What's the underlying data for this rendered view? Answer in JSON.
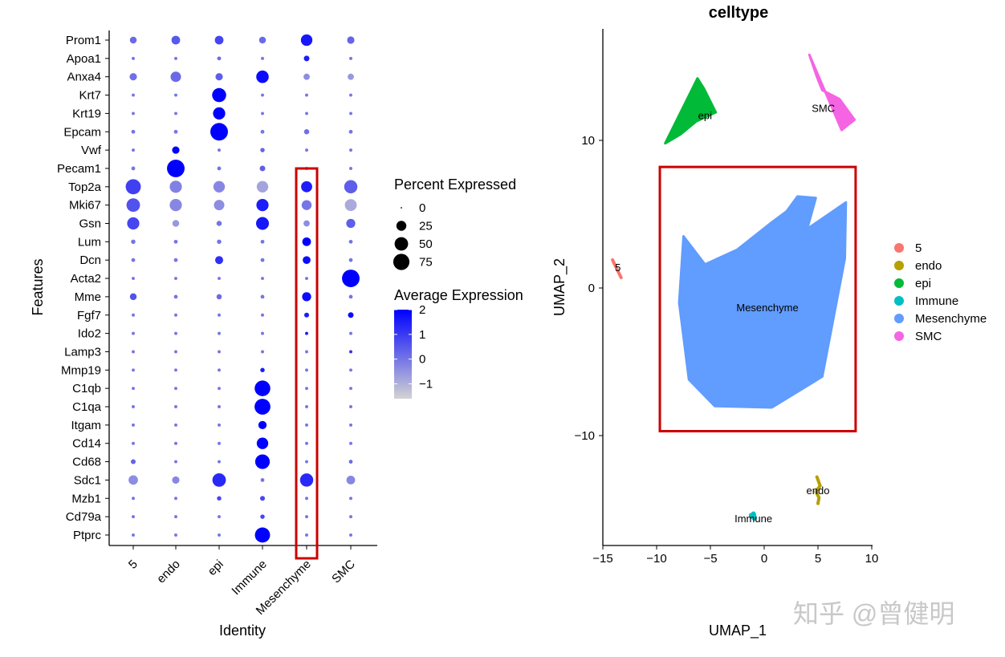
{
  "watermark": "知乎 @曾健明",
  "chart_data": [
    {
      "type": "dotplot",
      "xlabel": "Identity",
      "ylabel": "Features",
      "identities": [
        "5",
        "endo",
        "epi",
        "Immune",
        "Mesenchyme",
        "SMC"
      ],
      "features": [
        "Prom1",
        "Apoa1",
        "Anxa4",
        "Krt7",
        "Krt19",
        "Epcam",
        "Vwf",
        "Pecam1",
        "Top2a",
        "Mki67",
        "Gsn",
        "Lum",
        "Dcn",
        "Acta2",
        "Mme",
        "Fgf7",
        "Ido2",
        "Lamp3",
        "Mmp19",
        "C1qb",
        "C1qa",
        "Itgam",
        "Cd14",
        "Cd68",
        "Sdc1",
        "Mzb1",
        "Cd79a",
        "Ptprc"
      ],
      "percent_expressed": [
        [
          10,
          18,
          18,
          10,
          35,
          12
        ],
        [
          1,
          1,
          2,
          1,
          6,
          1
        ],
        [
          12,
          28,
          12,
          42,
          8,
          8
        ],
        [
          1,
          1,
          55,
          1,
          1,
          1
        ],
        [
          1,
          1,
          40,
          1,
          1,
          1
        ],
        [
          2,
          2,
          90,
          2,
          5,
          2
        ],
        [
          1,
          12,
          1,
          3,
          1,
          1
        ],
        [
          2,
          90,
          2,
          6,
          1,
          1
        ],
        [
          65,
          40,
          35,
          35,
          32,
          48
        ],
        [
          50,
          40,
          28,
          40,
          25,
          38
        ],
        [
          40,
          10,
          5,
          45,
          8,
          20
        ],
        [
          3,
          2,
          3,
          2,
          18,
          2
        ],
        [
          2,
          2,
          15,
          2,
          14,
          2
        ],
        [
          1,
          1,
          1,
          1,
          1,
          90
        ],
        [
          10,
          2,
          5,
          2,
          20,
          2
        ],
        [
          1,
          1,
          1,
          1,
          4,
          6
        ],
        [
          1,
          1,
          1,
          1,
          1,
          1
        ],
        [
          1,
          1,
          1,
          1,
          1,
          1
        ],
        [
          1,
          1,
          1,
          3,
          1,
          1
        ],
        [
          1,
          1,
          1,
          70,
          1,
          1
        ],
        [
          1,
          1,
          1,
          72,
          1,
          1
        ],
        [
          1,
          1,
          1,
          16,
          1,
          1
        ],
        [
          1,
          1,
          1,
          35,
          1,
          1
        ],
        [
          4,
          1,
          1,
          60,
          1,
          2
        ],
        [
          22,
          12,
          50,
          2,
          48,
          18
        ],
        [
          1,
          1,
          3,
          4,
          1,
          1
        ],
        [
          1,
          1,
          1,
          3,
          1,
          1
        ],
        [
          1,
          1,
          1,
          65,
          1,
          1
        ]
      ],
      "average_expression": [
        [
          0.2,
          0.5,
          0.8,
          0.2,
          1.6,
          0.3
        ],
        [
          0,
          0,
          0.2,
          0,
          1.5,
          0
        ],
        [
          0.1,
          0.2,
          0.4,
          1.8,
          -0.4,
          -0.6
        ],
        [
          0,
          0,
          2,
          0,
          0,
          0
        ],
        [
          0,
          0,
          2,
          0,
          0,
          0
        ],
        [
          0,
          0,
          2,
          0,
          0.1,
          0
        ],
        [
          0,
          2,
          0,
          0.3,
          0,
          0
        ],
        [
          0,
          2,
          0,
          0.4,
          0,
          0
        ],
        [
          0.9,
          -0.2,
          -0.3,
          -0.8,
          1.5,
          0.4
        ],
        [
          0.6,
          -0.3,
          -0.4,
          1.5,
          0,
          -0.9
        ],
        [
          0.8,
          -0.6,
          0,
          1.6,
          -0.4,
          0.4
        ],
        [
          0,
          0,
          0,
          0,
          2,
          0
        ],
        [
          0,
          0,
          1.2,
          0,
          1.8,
          0
        ],
        [
          0,
          0,
          0,
          0,
          0,
          2
        ],
        [
          0.6,
          0,
          0.2,
          0,
          1.8,
          0
        ],
        [
          0,
          0,
          0,
          0,
          1.5,
          1.8
        ],
        [
          0,
          0,
          0,
          0,
          1.5,
          0
        ],
        [
          0,
          0,
          0,
          0,
          0,
          1.2
        ],
        [
          0,
          0,
          0,
          1.5,
          0,
          0
        ],
        [
          0,
          0,
          0,
          2,
          0,
          0
        ],
        [
          0,
          0,
          0,
          2,
          0,
          0
        ],
        [
          0,
          0,
          0,
          2,
          0,
          0
        ],
        [
          0,
          0,
          0,
          2,
          0,
          0
        ],
        [
          0.3,
          0,
          0,
          2,
          0,
          0.2
        ],
        [
          -0.4,
          -0.3,
          1.3,
          0,
          1.3,
          -0.3
        ],
        [
          0,
          0,
          0.8,
          0.8,
          0,
          0
        ],
        [
          0,
          0,
          0,
          0.8,
          0,
          0
        ],
        [
          0,
          0,
          0,
          2,
          0,
          0
        ]
      ],
      "size_legend": {
        "title": "Percent Expressed",
        "values": [
          0,
          25,
          50,
          75
        ]
      },
      "color_legend": {
        "title": "Average Expression",
        "ticks": [
          2,
          1,
          0,
          -1
        ],
        "range": [
          -1.6,
          2
        ],
        "low_color": "#d3d3d3",
        "high_color": "#0000ff"
      },
      "highlight_column": "Mesenchyme",
      "highlight_color": "#cc0000"
    },
    {
      "type": "scatter",
      "title": "celltype",
      "xlabel": "UMAP_1",
      "ylabel": "UMAP_2",
      "xticks": [
        -15,
        -10,
        -5,
        0,
        5,
        10
      ],
      "yticks": [
        10,
        0,
        -10
      ],
      "xlim": [
        -15.5,
        10
      ],
      "ylim": [
        -17.5,
        17
      ],
      "legend": "right",
      "grid": false,
      "clusters": [
        {
          "name": "5",
          "color": "#f8766d",
          "label_pos": [
            -13.6,
            1.4
          ],
          "points": [
            [
              -14.1,
              1.9
            ],
            [
              -13.9,
              1.6
            ],
            [
              -13.7,
              1.3
            ],
            [
              -13.5,
              1.0
            ],
            [
              -13.3,
              0.7
            ]
          ]
        },
        {
          "name": "endo",
          "color": "#b79f00",
          "label_pos": [
            5.0,
            -13.7
          ],
          "points": [
            [
              4.9,
              -12.8
            ],
            [
              5.2,
              -13.4
            ],
            [
              4.8,
              -13.8
            ],
            [
              5.1,
              -14.2
            ],
            [
              5.0,
              -14.6
            ]
          ]
        },
        {
          "name": "epi",
          "color": "#00ba38",
          "label_pos": [
            -5.5,
            11.7
          ],
          "points": [
            [
              -9.2,
              9.8
            ],
            [
              -7.8,
              10.4
            ],
            [
              -6.3,
              11.3
            ],
            [
              -4.5,
              11.9
            ],
            [
              -5.6,
              13.5
            ],
            [
              -6.2,
              14.2
            ]
          ]
        },
        {
          "name": "Immune",
          "color": "#00bfc4",
          "label_pos": [
            -1.0,
            -15.6
          ],
          "points": [
            [
              -1.2,
              -15.4
            ],
            [
              -0.9,
              -15.6
            ],
            [
              -1.0,
              -15.3
            ]
          ]
        },
        {
          "name": "Mesenchyme",
          "color": "#619cff",
          "label_pos": [
            0.3,
            -1.3
          ],
          "points": [
            [
              -7.5,
              3.5
            ],
            [
              -7.9,
              -1.0
            ],
            [
              -7.0,
              -6.2
            ],
            [
              -4.6,
              -8.0
            ],
            [
              0.7,
              -8.1
            ],
            [
              5.4,
              -6.0
            ],
            [
              7.5,
              2.0
            ],
            [
              7.6,
              5.8
            ],
            [
              4.0,
              4.0
            ],
            [
              4.8,
              6.1
            ],
            [
              3.1,
              6.2
            ],
            [
              2.1,
              5.2
            ],
            [
              0.8,
              4.5
            ],
            [
              -2.5,
              2.6
            ],
            [
              -5.5,
              1.6
            ]
          ]
        },
        {
          "name": "SMC",
          "color": "#f564e3",
          "label_pos": [
            5.5,
            12.2
          ],
          "points": [
            [
              4.2,
              15.8
            ],
            [
              4.9,
              14.3
            ],
            [
              5.4,
              13.4
            ],
            [
              7.0,
              12.8
            ],
            [
              8.4,
              11.4
            ],
            [
              7.2,
              10.7
            ]
          ]
        }
      ],
      "highlight_box": {
        "x": [
          -9.7,
          8.5
        ],
        "y": [
          -9.7,
          8.2
        ],
        "color": "#cc0000"
      }
    }
  ]
}
